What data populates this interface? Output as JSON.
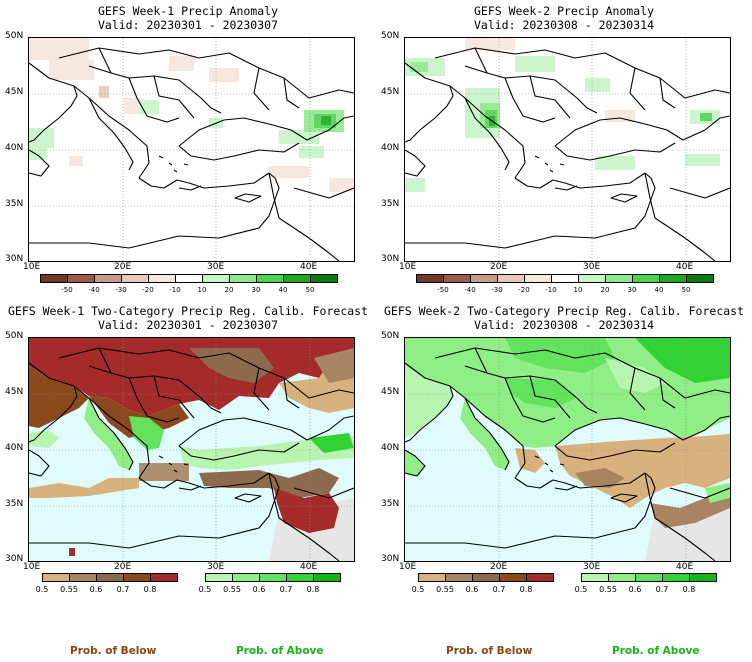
{
  "panels": [
    {
      "title_line1": "GEFS Week-1 Precip Anomaly",
      "title_line2": "Valid: 20230301 - 20230307"
    },
    {
      "title_line1": "GEFS Week-2 Precip Anomaly",
      "title_line2": "Valid: 20230308 - 20230314"
    },
    {
      "title_line1": "GEFS Week-1 Two-Category Precip Reg. Calib. Forecast",
      "title_line2": "Valid: 20230301 - 20230307"
    },
    {
      "title_line1": "GEFS Week-2 Two-Category Precip Reg. Calib. Forecast",
      "title_line2": "Valid: 20230308 - 20230314"
    }
  ],
  "lat_labels": [
    "50N",
    "45N",
    "40N",
    "35N",
    "30N"
  ],
  "lon_labels": [
    "10E",
    "20E",
    "30E",
    "40E"
  ],
  "anomaly_colorbar": {
    "ticks": [
      "-50",
      "-40",
      "-30",
      "-20",
      "-10",
      "10",
      "20",
      "30",
      "40",
      "50"
    ],
    "colors": [
      "#6e3b2b",
      "#9b5b4b",
      "#c99a8a",
      "#e8c8b8",
      "#f7e6dc",
      "#ffffff",
      "#c8f5c8",
      "#8ee88e",
      "#4fd34f",
      "#1ea81e",
      "#0a7a0a"
    ]
  },
  "below_colorbar": {
    "ticks": [
      "0.5",
      "0.55",
      "0.6",
      "0.7",
      "0.8"
    ],
    "colors": [
      "#d7b27e",
      "#a98462",
      "#8c6a4e",
      "#8a4a1e",
      "#a52a2a"
    ]
  },
  "above_colorbar": {
    "ticks": [
      "0.5",
      "0.55",
      "0.6",
      "0.7",
      "0.8"
    ],
    "colors": [
      "#b8f5b0",
      "#8fee86",
      "#63e35d",
      "#34d134",
      "#0fb80f"
    ]
  },
  "footer": {
    "below_label": "Prob. of Below",
    "above_label": "Prob. of Above",
    "below_color": "#8b4513",
    "above_color": "#19b319"
  },
  "colors": {
    "sea_probability": "#e0fbfc",
    "dry_region": "#e6e6e6"
  }
}
